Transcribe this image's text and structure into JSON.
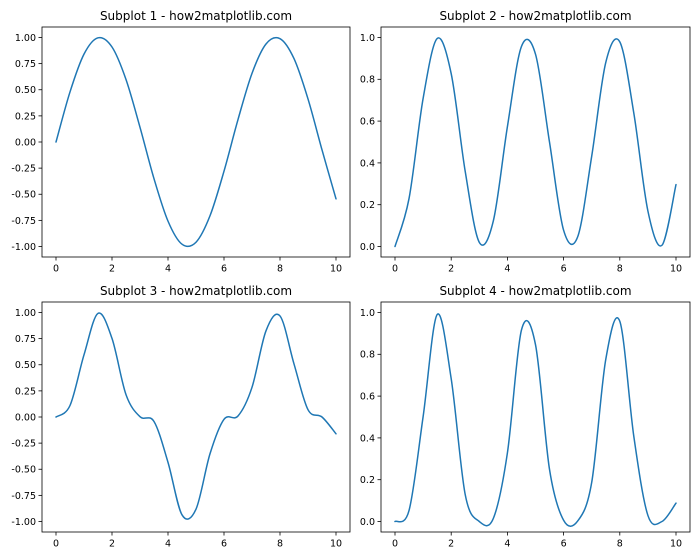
{
  "colors": {
    "line": "#1f77b4",
    "background": "#ffffff",
    "axes": "#000000"
  },
  "chart_data": [
    {
      "type": "line",
      "title": "Subplot 1 - how2matplotlib.com",
      "xlabel": "",
      "ylabel": "",
      "xlim": [
        0,
        10
      ],
      "ylim": [
        -1.0,
        1.0
      ],
      "xticks": [
        0,
        2,
        4,
        6,
        8,
        10
      ],
      "yticks": [
        -1.0,
        -0.75,
        -0.5,
        -0.25,
        0.0,
        0.25,
        0.5,
        0.75,
        1.0
      ],
      "ytick_labels": [
        "-1.00",
        "-0.75",
        "-0.50",
        "-0.25",
        "0.00",
        "0.25",
        "0.50",
        "0.75",
        "1.00"
      ],
      "grid": false,
      "series": [
        {
          "x": [
            0,
            0.5,
            1,
            1.5,
            2,
            2.5,
            3,
            3.5,
            4,
            4.5,
            5,
            5.5,
            6,
            6.5,
            7,
            7.5,
            8,
            8.5,
            9,
            9.5,
            10
          ],
          "y": [
            0,
            0.479,
            0.841,
            0.997,
            0.909,
            0.598,
            0.141,
            -0.351,
            -0.757,
            -0.978,
            -0.959,
            -0.706,
            -0.279,
            0.215,
            0.657,
            0.938,
            0.989,
            0.798,
            0.412,
            -0.075,
            -0.544
          ]
        }
      ]
    },
    {
      "type": "line",
      "title": "Subplot 2 - how2matplotlib.com",
      "xlabel": "",
      "ylabel": "",
      "xlim": [
        0,
        10
      ],
      "ylim": [
        0.0,
        1.0
      ],
      "xticks": [
        0,
        2,
        4,
        6,
        8,
        10
      ],
      "yticks": [
        0.0,
        0.2,
        0.4,
        0.6,
        0.8,
        1.0
      ],
      "ytick_labels": [
        "0.0",
        "0.2",
        "0.4",
        "0.6",
        "0.8",
        "1.0"
      ],
      "grid": false,
      "series": [
        {
          "x": [
            0,
            0.5,
            1,
            1.5,
            2,
            2.5,
            3,
            3.5,
            4,
            4.5,
            5,
            5.5,
            6,
            6.5,
            7,
            7.5,
            8,
            8.5,
            9,
            9.5,
            10
          ],
          "y": [
            0,
            0.23,
            0.708,
            0.995,
            0.827,
            0.358,
            0.02,
            0.123,
            0.573,
            0.957,
            0.92,
            0.498,
            0.078,
            0.046,
            0.432,
            0.88,
            0.979,
            0.637,
            0.17,
            0.006,
            0.296
          ]
        }
      ]
    },
    {
      "type": "line",
      "title": "Subplot 3 - how2matplotlib.com",
      "xlabel": "",
      "ylabel": "",
      "xlim": [
        0,
        10
      ],
      "ylim": [
        -1.0,
        1.0
      ],
      "xticks": [
        0,
        2,
        4,
        6,
        8,
        10
      ],
      "yticks": [
        -1.0,
        -0.75,
        -0.5,
        -0.25,
        0.0,
        0.25,
        0.5,
        0.75,
        1.0
      ],
      "ytick_labels": [
        "-1.00",
        "-0.75",
        "-0.50",
        "-0.25",
        "0.00",
        "0.25",
        "0.50",
        "0.75",
        "1.00"
      ],
      "grid": false,
      "series": [
        {
          "x": [
            0,
            0.5,
            1,
            1.5,
            2,
            2.5,
            3,
            3.5,
            4,
            4.5,
            5,
            5.5,
            6,
            6.5,
            7,
            7.5,
            8,
            8.5,
            9,
            9.5,
            10
          ],
          "y": [
            0,
            0.11,
            0.595,
            0.992,
            0.752,
            0.214,
            0.003,
            -0.043,
            -0.434,
            -0.936,
            -0.882,
            -0.352,
            -0.022,
            0.01,
            0.284,
            0.825,
            0.967,
            0.508,
            0.07,
            0,
            -0.161
          ]
        }
      ]
    },
    {
      "type": "line",
      "title": "Subplot 4 - how2matplotlib.com",
      "xlabel": "",
      "ylabel": "",
      "xlim": [
        0,
        10
      ],
      "ylim": [
        0.0,
        1.0
      ],
      "xticks": [
        0,
        2,
        4,
        6,
        8,
        10
      ],
      "yticks": [
        0.0,
        0.2,
        0.4,
        0.6,
        0.8,
        1.0
      ],
      "ytick_labels": [
        "0.0",
        "0.2",
        "0.4",
        "0.6",
        "0.8",
        "1.0"
      ],
      "grid": false,
      "series": [
        {
          "x": [
            0,
            0.5,
            1,
            1.5,
            2,
            2.5,
            3,
            3.5,
            4,
            4.5,
            5,
            5.5,
            6,
            6.5,
            7,
            7.5,
            8,
            8.5,
            9,
            9.5,
            10
          ],
          "y": [
            0,
            0.053,
            0.501,
            0.99,
            0.683,
            0.128,
            0,
            0.015,
            0.328,
            0.916,
            0.846,
            0.248,
            0.006,
            0.002,
            0.187,
            0.775,
            0.958,
            0.406,
            0.029,
            0,
            0.088
          ]
        }
      ]
    }
  ]
}
